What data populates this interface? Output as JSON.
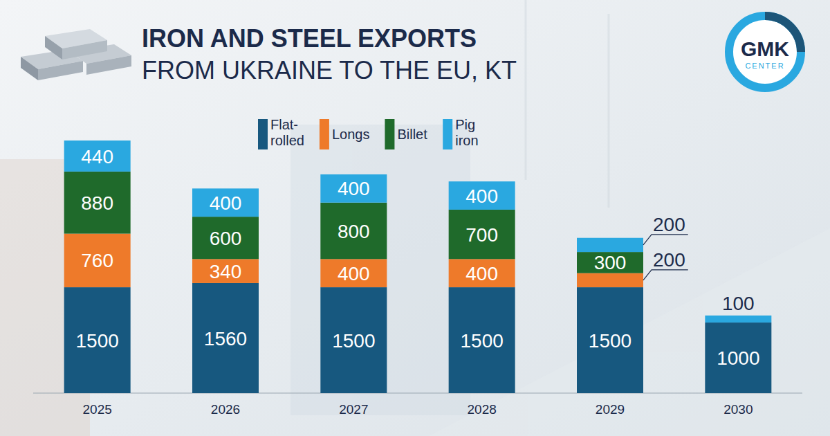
{
  "chart_data": {
    "type": "bar",
    "title": "IRON AND STEEL EXPORTS",
    "subtitle": "FROM UKRAINE TO THE EU, KT",
    "categories": [
      "2025",
      "2026",
      "2027",
      "2028",
      "2029",
      "2030"
    ],
    "series": [
      {
        "name": "Flat-rolled",
        "color": "#17587f",
        "values": [
          1500,
          1560,
          1500,
          1500,
          1500,
          1000
        ]
      },
      {
        "name": "Longs",
        "color": "#ee7a2a",
        "values": [
          760,
          340,
          400,
          400,
          200,
          null
        ]
      },
      {
        "name": "Billet",
        "color": "#1f6a2b",
        "values": [
          880,
          600,
          800,
          700,
          300,
          null
        ]
      },
      {
        "name": "Pig iron",
        "color": "#2aa8e0",
        "values": [
          440,
          400,
          400,
          400,
          200,
          100
        ]
      }
    ],
    "ylim": [
      0,
      3600
    ],
    "stacked": true,
    "data_labels": true,
    "legend": "top",
    "tick_labels": "x",
    "annotations": [
      "GMK",
      "CENTER"
    ]
  }
}
